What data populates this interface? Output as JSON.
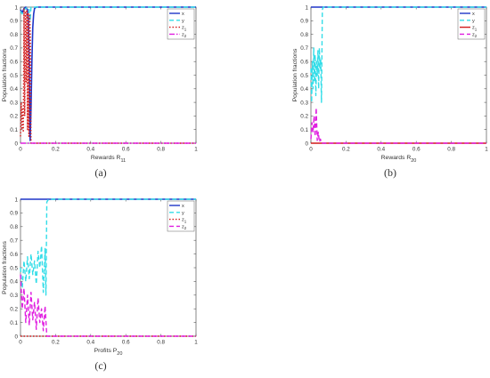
{
  "chart_data": [
    {
      "type": "line",
      "caption": "(a)",
      "xlabel": "Rewards R",
      "xlabel_sub": "11",
      "ylabel": "Population fractions",
      "xlim": [
        0,
        1
      ],
      "ylim": [
        0,
        1
      ],
      "xticks": [
        "0",
        "0.2",
        "0.4",
        "0.6",
        "0.8",
        "1"
      ],
      "yticks": [
        "0",
        "0.1",
        "0.2",
        "0.3",
        "0.4",
        "0.5",
        "0.6",
        "0.7",
        "0.8",
        "0.9",
        "1"
      ],
      "grid": false,
      "legend_position": "top-right",
      "series": [
        {
          "name": "x",
          "sub": "",
          "color": "#1f35c8",
          "dash": "solid",
          "x": [
            0,
            0.01,
            0.02,
            0.03,
            0.04,
            0.045,
            0.05,
            0.055,
            0.06,
            0.065,
            0.07,
            0.075,
            0.08,
            0.09,
            0.1,
            1
          ],
          "y": [
            0.98,
            0.96,
            0.99,
            1,
            0.98,
            0.9,
            0.6,
            0.02,
            0.25,
            0.6,
            0.85,
            0.95,
            0.99,
            1,
            1,
            1
          ]
        },
        {
          "name": "y",
          "sub": "",
          "color": "#33dde8",
          "dash": "dash",
          "x": [
            0,
            0.01,
            0.02,
            0.03,
            0.04,
            0.05,
            0.055,
            0.06,
            0.07,
            0.08,
            1
          ],
          "y": [
            0.97,
            0.95,
            0.98,
            0.99,
            1,
            0.98,
            0.9,
            1,
            1,
            1,
            1
          ]
        },
        {
          "name": "z",
          "sub": "1",
          "color": "#d21a1a",
          "dash": "dot",
          "x": [
            0,
            0.004,
            0.008,
            0.012,
            0.016,
            0.02,
            0.024,
            0.028,
            0.032,
            0.036,
            0.04,
            0.044,
            0.048,
            0.052,
            0.056,
            0.06,
            0.07,
            1
          ],
          "y": [
            0.05,
            0.3,
            0.1,
            0.25,
            0.08,
            0.99,
            0.2,
            0.97,
            0.45,
            0.98,
            0.1,
            0.96,
            0.05,
            0.95,
            0.8,
            0,
            0,
            0
          ]
        },
        {
          "name": "z",
          "sub": "2",
          "color": "#e01ee0",
          "dash": "dashdot",
          "x": [
            0,
            1
          ],
          "y": [
            0,
            0
          ]
        }
      ]
    },
    {
      "type": "line",
      "caption": "(b)",
      "xlabel": "Rewards R",
      "xlabel_sub": "20",
      "ylabel": "Population fractions",
      "xlim": [
        0,
        1
      ],
      "ylim": [
        0,
        1
      ],
      "xticks": [
        "0",
        "0.2",
        "0.4",
        "0.6",
        "0.8",
        "1"
      ],
      "yticks": [
        "0",
        "0.1",
        "0.2",
        "0.3",
        "0.4",
        "0.5",
        "0.6",
        "0.7",
        "0.8",
        "0.9",
        "1"
      ],
      "grid": false,
      "legend_position": "top-right",
      "series": [
        {
          "name": "x",
          "sub": "",
          "color": "#1f35c8",
          "dash": "solid",
          "x": [
            0,
            1
          ],
          "y": [
            1,
            1
          ]
        },
        {
          "name": "y",
          "sub": "",
          "color": "#33dde8",
          "dash": "dash",
          "x": [
            0,
            0.004,
            0.008,
            0.012,
            0.016,
            0.02,
            0.024,
            0.028,
            0.032,
            0.036,
            0.04,
            0.044,
            0.048,
            0.052,
            0.056,
            0.06,
            0.065,
            0.07,
            1
          ],
          "y": [
            0.55,
            0.3,
            0.6,
            0.4,
            0.7,
            0.45,
            0.65,
            0.35,
            0.6,
            0.5,
            0.68,
            0.4,
            0.7,
            0.55,
            0.62,
            0.3,
            0.98,
            1,
            1
          ]
        },
        {
          "name": "z",
          "sub": "1",
          "color": "#d21a1a",
          "dash": "solid",
          "x": [
            0,
            1
          ],
          "y": [
            0,
            0
          ]
        },
        {
          "name": "z",
          "sub": "2",
          "color": "#e01ee0",
          "dash": "dash",
          "x": [
            0,
            0.006,
            0.012,
            0.018,
            0.024,
            0.03,
            0.036,
            0.042,
            0.048,
            0.054,
            0.06,
            1
          ],
          "y": [
            0.03,
            0.15,
            0.08,
            0.2,
            0.05,
            0.26,
            0.02,
            0.08,
            0.01,
            0.03,
            0,
            0
          ]
        }
      ]
    },
    {
      "type": "line",
      "caption": "(c)",
      "xlabel": "Profits P",
      "xlabel_sub": "20",
      "ylabel": "Population fractions",
      "xlim": [
        0,
        1
      ],
      "ylim": [
        0,
        1
      ],
      "xticks": [
        "0",
        "0.2",
        "0.4",
        "0.6",
        "0.8",
        "1"
      ],
      "yticks": [
        "0",
        "0.1",
        "0.2",
        "0.3",
        "0.4",
        "0.5",
        "0.6",
        "0.7",
        "0.8",
        "0.9",
        "1"
      ],
      "grid": false,
      "legend_position": "top-right",
      "series": [
        {
          "name": "x",
          "sub": "",
          "color": "#1f35c8",
          "dash": "solid",
          "x": [
            0,
            1
          ],
          "y": [
            1,
            1
          ]
        },
        {
          "name": "y",
          "sub": "",
          "color": "#33dde8",
          "dash": "dash",
          "x": [
            0,
            0.01,
            0.02,
            0.03,
            0.04,
            0.05,
            0.06,
            0.07,
            0.08,
            0.09,
            0.1,
            0.11,
            0.12,
            0.13,
            0.14,
            0.145,
            0.15,
            0.16,
            1
          ],
          "y": [
            0.5,
            0.35,
            0.55,
            0.4,
            0.58,
            0.42,
            0.6,
            0.45,
            0.55,
            0.38,
            0.62,
            0.5,
            0.66,
            0.32,
            0.64,
            0.3,
            0.98,
            1,
            1
          ]
        },
        {
          "name": "z",
          "sub": "1",
          "color": "#d21a1a",
          "dash": "dot",
          "x": [
            0,
            1
          ],
          "y": [
            0,
            0
          ]
        },
        {
          "name": "z",
          "sub": "2",
          "color": "#e01ee0",
          "dash": "dash",
          "x": [
            0,
            0.01,
            0.02,
            0.03,
            0.04,
            0.05,
            0.06,
            0.07,
            0.08,
            0.09,
            0.1,
            0.11,
            0.12,
            0.13,
            0.14,
            0.15,
            0.16,
            1
          ],
          "y": [
            0.45,
            0.2,
            0.35,
            0.1,
            0.3,
            0.08,
            0.32,
            0.12,
            0.25,
            0.05,
            0.28,
            0.1,
            0.2,
            0.04,
            0.22,
            0,
            0,
            0
          ]
        }
      ]
    }
  ]
}
